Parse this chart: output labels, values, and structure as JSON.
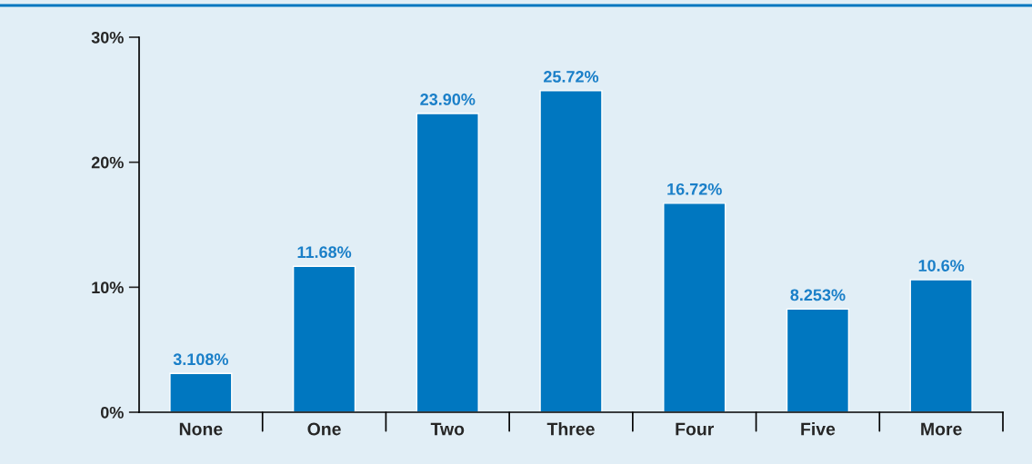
{
  "chart_data": {
    "type": "bar",
    "categories": [
      "None",
      "One",
      "Two",
      "Three",
      "Four",
      "Five",
      "More"
    ],
    "values": [
      3.108,
      11.68,
      23.9,
      25.72,
      16.72,
      8.253,
      10.6
    ],
    "value_labels": [
      "3.108%",
      "11.68%",
      "23.90%",
      "25.72%",
      "16.72%",
      "8.253%",
      "10.6%"
    ],
    "color": "#0077c0",
    "ylim": [
      0,
      30
    ],
    "yticks": [
      {
        "value": 0,
        "label": "0%"
      },
      {
        "value": 10,
        "label": "10%"
      },
      {
        "value": 20,
        "label": "20%"
      },
      {
        "value": 30,
        "label": "30%"
      }
    ],
    "grid": false
  }
}
